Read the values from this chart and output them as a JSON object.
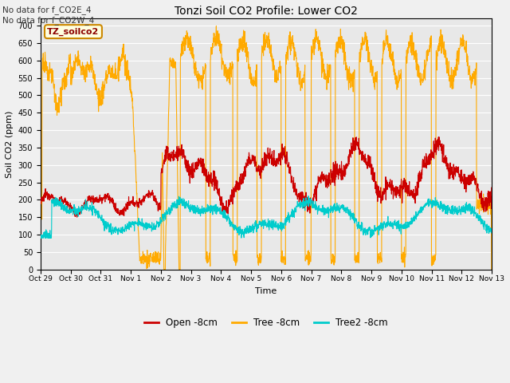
{
  "title": "Tonzi Soil CO2 Profile: Lower CO2",
  "xlabel": "Time",
  "ylabel": "Soil CO2 (ppm)",
  "ylim": [
    0,
    720
  ],
  "yticks": [
    0,
    50,
    100,
    150,
    200,
    250,
    300,
    350,
    400,
    450,
    500,
    550,
    600,
    650,
    700
  ],
  "annotation_text": "No data for f_CO2E_4\nNo data for f_CO2W_4",
  "legend_label": "TZ_soilco2",
  "legend_labels": [
    "Open -8cm",
    "Tree -8cm",
    "Tree2 -8cm"
  ],
  "line_colors": [
    "#cc0000",
    "#ffaa00",
    "#00cccc"
  ],
  "plot_bg_color": "#e8e8e8",
  "fig_bg_color": "#f0f0f0",
  "grid_color": "#ffffff"
}
